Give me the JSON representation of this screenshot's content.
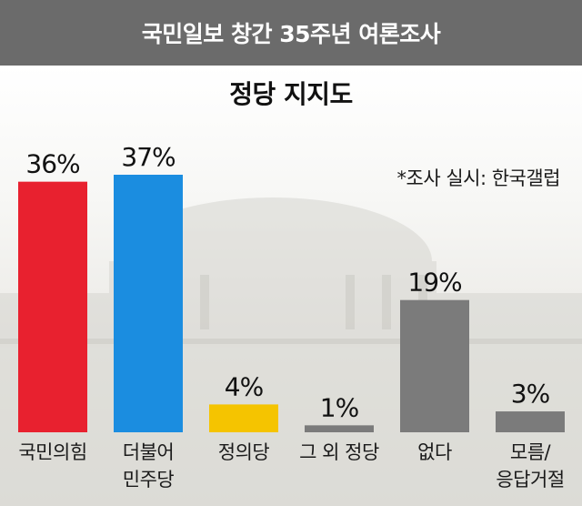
{
  "header": {
    "title": "국민일보 창간 35주년 여론조사"
  },
  "source_note": "*조사 실시: 한국갤럽",
  "colors": {
    "people_power": "#e8212f",
    "democratic": "#1b8de0",
    "justice": "#f5c400",
    "gray": "#7b7b7b"
  },
  "chart_data": {
    "type": "bar",
    "title": "정당 지지도",
    "xlabel": "",
    "ylabel": "",
    "ylim": [
      0,
      37
    ],
    "grid": false,
    "categories": [
      [
        "국민의힘"
      ],
      [
        "더불어",
        "민주당"
      ],
      [
        "정의당"
      ],
      [
        "그 외 정당"
      ],
      [
        "없다"
      ],
      [
        "모름/",
        "응답거절"
      ]
    ],
    "values": [
      36,
      37,
      4,
      1,
      19,
      3
    ],
    "value_labels": [
      "36%",
      "37%",
      "4%",
      "1%",
      "19%",
      "3%"
    ],
    "bar_colors": [
      "#e8212f",
      "#1b8de0",
      "#f5c400",
      "#7b7b7b",
      "#7b7b7b",
      "#7b7b7b"
    ]
  }
}
